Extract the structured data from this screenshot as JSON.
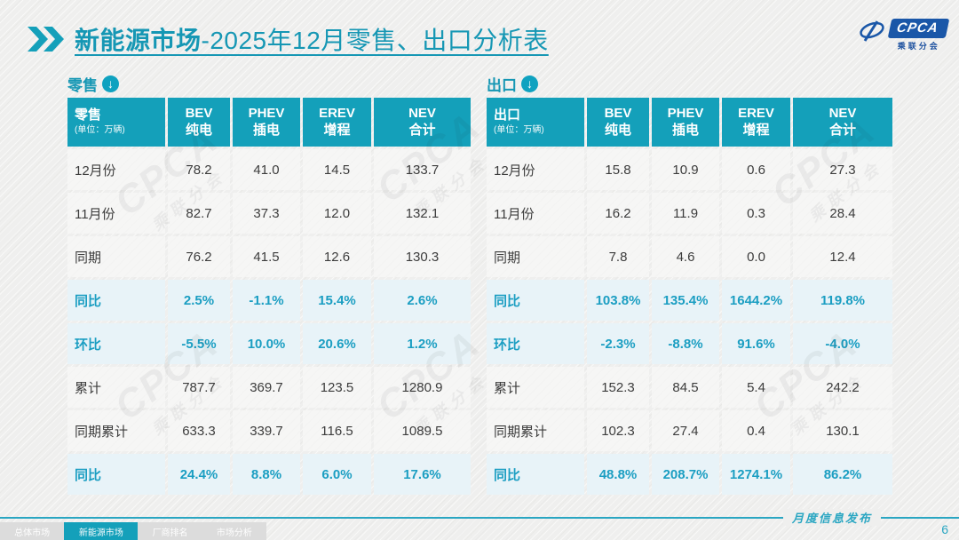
{
  "header": {
    "title_bold": "新能源市场",
    "title_rest": "-2025年12月零售、出口分析表"
  },
  "logo": {
    "name": "CPCA",
    "subname": "乘联分会"
  },
  "watermark": {
    "big": "CPCA",
    "small": "乘联分会"
  },
  "chart_data": [
    {
      "type": "table",
      "section_label": "零售",
      "corner_title": "零售",
      "corner_unit": "(单位：万辆)",
      "columns": [
        {
          "en": "BEV",
          "cn": "纯电"
        },
        {
          "en": "PHEV",
          "cn": "插电"
        },
        {
          "en": "EREV",
          "cn": "增程"
        },
        {
          "en": "NEV",
          "cn": "合计"
        }
      ],
      "rows": [
        {
          "label": "12月份",
          "values": [
            "78.2",
            "41.0",
            "14.5",
            "133.7"
          ],
          "highlight": false
        },
        {
          "label": "11月份",
          "values": [
            "82.7",
            "37.3",
            "12.0",
            "132.1"
          ],
          "highlight": false
        },
        {
          "label": "同期",
          "values": [
            "76.2",
            "41.5",
            "12.6",
            "130.3"
          ],
          "highlight": false
        },
        {
          "label": "同比",
          "values": [
            "2.5%",
            "-1.1%",
            "15.4%",
            "2.6%"
          ],
          "highlight": true
        },
        {
          "label": "环比",
          "values": [
            "-5.5%",
            "10.0%",
            "20.6%",
            "1.2%"
          ],
          "highlight": true
        },
        {
          "label": "累计",
          "values": [
            "787.7",
            "369.7",
            "123.5",
            "1280.9"
          ],
          "highlight": false
        },
        {
          "label": "同期累计",
          "values": [
            "633.3",
            "339.7",
            "116.5",
            "1089.5"
          ],
          "highlight": false
        },
        {
          "label": "同比",
          "values": [
            "24.4%",
            "8.8%",
            "6.0%",
            "17.6%"
          ],
          "highlight": true
        }
      ]
    },
    {
      "type": "table",
      "section_label": "出口",
      "corner_title": "出口",
      "corner_unit": "(单位：万辆)",
      "columns": [
        {
          "en": "BEV",
          "cn": "纯电"
        },
        {
          "en": "PHEV",
          "cn": "插电"
        },
        {
          "en": "EREV",
          "cn": "增程"
        },
        {
          "en": "NEV",
          "cn": "合计"
        }
      ],
      "rows": [
        {
          "label": "12月份",
          "values": [
            "15.8",
            "10.9",
            "0.6",
            "27.3"
          ],
          "highlight": false
        },
        {
          "label": "11月份",
          "values": [
            "16.2",
            "11.9",
            "0.3",
            "28.4"
          ],
          "highlight": false
        },
        {
          "label": "同期",
          "values": [
            "7.8",
            "4.6",
            "0.0",
            "12.4"
          ],
          "highlight": false
        },
        {
          "label": "同比",
          "values": [
            "103.8%",
            "135.4%",
            "1644.2%",
            "119.8%"
          ],
          "highlight": true
        },
        {
          "label": "环比",
          "values": [
            "-2.3%",
            "-8.8%",
            "91.6%",
            "-4.0%"
          ],
          "highlight": true
        },
        {
          "label": "累计",
          "values": [
            "152.3",
            "84.5",
            "5.4",
            "242.2"
          ],
          "highlight": false
        },
        {
          "label": "同期累计",
          "values": [
            "102.3",
            "27.4",
            "0.4",
            "130.1"
          ],
          "highlight": false
        },
        {
          "label": "同比",
          "values": [
            "48.8%",
            "208.7%",
            "1274.1%",
            "86.2%"
          ],
          "highlight": true
        }
      ]
    }
  ],
  "footer": {
    "tabs": [
      {
        "label": "总体市场",
        "active": false
      },
      {
        "label": "新能源市场",
        "active": true
      },
      {
        "label": "厂商排名",
        "active": false
      },
      {
        "label": "市场分析",
        "active": false
      }
    ],
    "note": "月度信息发布",
    "page_number": "6"
  },
  "colors": {
    "teal": "#14A0BA",
    "title_text": "#1697B4",
    "highlight_row_bg": "#E8F3F8",
    "percent_text": "#1B9EC2",
    "row_bg": "#F6F6F5",
    "page_bg": "#EFEFEE",
    "logo_blue": "#1A57A8",
    "footer_line": "#2AA6C2"
  }
}
